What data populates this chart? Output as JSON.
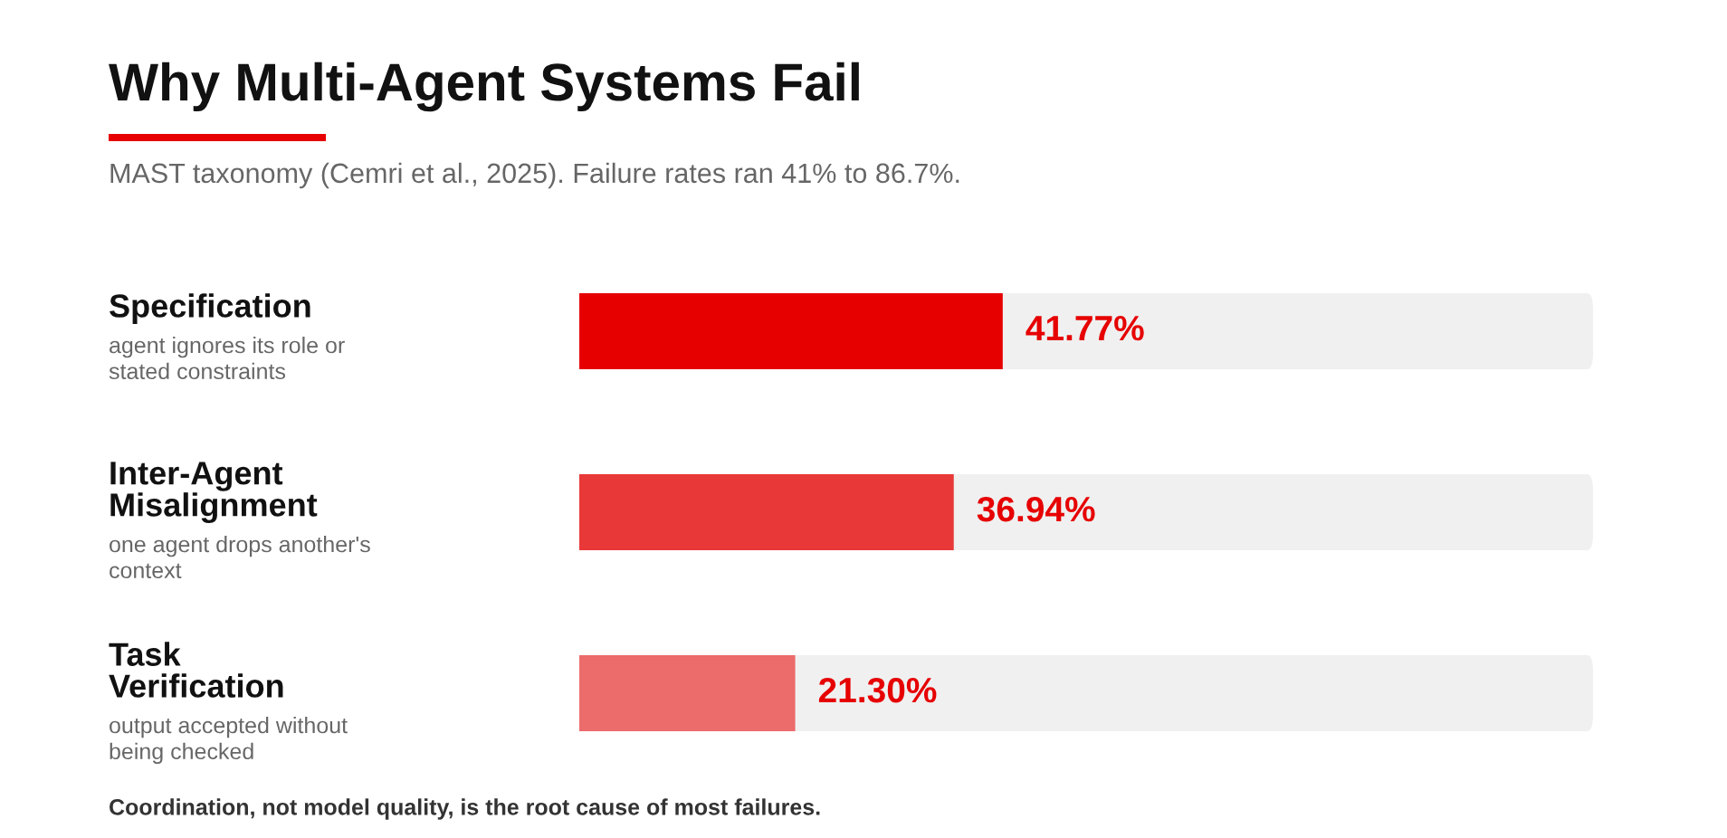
{
  "chart_data": {
    "type": "bar",
    "orientation": "horizontal",
    "title": "Why Multi-Agent Systems Fail",
    "subtitle": "MAST taxonomy (Cemri et al., 2025). Failure rates ran 41% to 86.7%.",
    "categories": [
      "Specification",
      "Inter-Agent\nMisalignment",
      "Task\nVerification"
    ],
    "values": [
      41.77,
      36.94,
      21.3
    ],
    "colors": [
      "#e60000",
      "#e83838",
      "#ec6b6b"
    ],
    "xlim": [
      0,
      100
    ],
    "value_labels": [
      "41.77%",
      "36.94%",
      "21.30%"
    ],
    "tick_labels": false,
    "annotations": [
      "agent ignores its role or\nstated constraints",
      "one agent drops another's\ncontext",
      "output accepted without\nbeing checked",
      "Coordination, not model quality, is the root cause of most failures."
    ]
  }
}
